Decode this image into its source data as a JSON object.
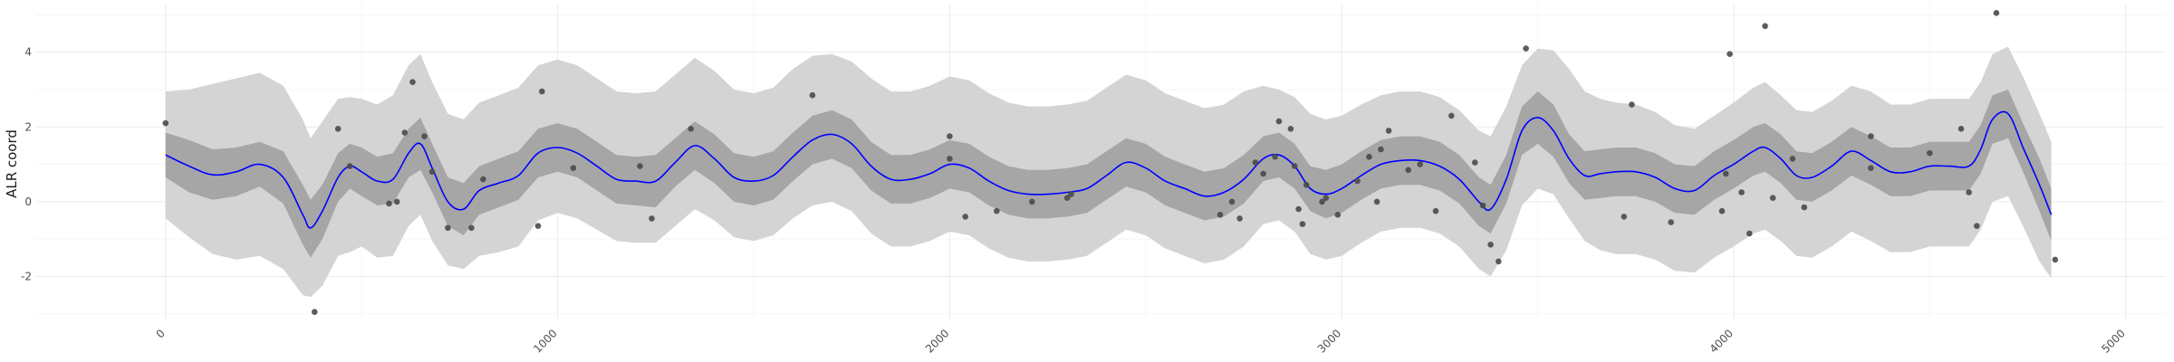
{
  "chart_data": {
    "type": "line",
    "title": "",
    "xlabel": "",
    "ylabel": "ALR coord",
    "xlim": [
      -330,
      5100
    ],
    "ylim": [
      -3.2,
      5.3
    ],
    "xticks": [
      0,
      1000,
      2000,
      3000,
      4000,
      5000
    ],
    "yticks": [
      -2,
      0,
      2,
      4
    ],
    "xtick_labels": [
      "0",
      "1000",
      "2000",
      "3000",
      "4000",
      "5000"
    ],
    "ytick_labels": [
      "-2",
      "0",
      "2",
      "4"
    ],
    "grid": true,
    "colors": {
      "mean_line": "#0000ff",
      "inner_band": "#a6a6a6",
      "outer_band": "#d4d4d4",
      "points": "#4a4a4a"
    },
    "series": [
      {
        "type": "line",
        "x": [
          0,
          60,
          120,
          180,
          240,
          300,
          350,
          370,
          400,
          440,
          470,
          500,
          540,
          580,
          620,
          650,
          680,
          720,
          760,
          800,
          850,
          900,
          950,
          1000,
          1050,
          1100,
          1150,
          1200,
          1250,
          1300,
          1350,
          1400,
          1450,
          1500,
          1550,
          1600,
          1650,
          1700,
          1750,
          1800,
          1850,
          1900,
          1950,
          2000,
          2050,
          2100,
          2150,
          2200,
          2250,
          2300,
          2350,
          2400,
          2450,
          2500,
          2550,
          2600,
          2650,
          2700,
          2750,
          2800,
          2840,
          2880,
          2920,
          2960,
          3000,
          3050,
          3100,
          3150,
          3200,
          3250,
          3300,
          3350,
          3380,
          3420,
          3460,
          3500,
          3540,
          3580,
          3620,
          3660,
          3700,
          3750,
          3800,
          3850,
          3900,
          3950,
          4000,
          4050,
          4080,
          4120,
          4160,
          4200,
          4250,
          4300,
          4350,
          4400,
          4450,
          4500,
          4550,
          4600,
          4630,
          4660,
          4700,
          4740,
          4780,
          4810
        ],
        "y": [
          1.25,
          0.95,
          0.72,
          0.8,
          1.0,
          0.65,
          -0.35,
          -0.7,
          -0.25,
          0.65,
          0.95,
          0.8,
          0.55,
          0.6,
          1.3,
          1.55,
          0.9,
          0.0,
          -0.2,
          0.3,
          0.5,
          0.7,
          1.3,
          1.45,
          1.3,
          0.95,
          0.6,
          0.55,
          0.55,
          1.05,
          1.5,
          1.15,
          0.65,
          0.55,
          0.7,
          1.2,
          1.65,
          1.8,
          1.55,
          0.95,
          0.6,
          0.6,
          0.75,
          1.0,
          0.9,
          0.55,
          0.3,
          0.2,
          0.2,
          0.25,
          0.35,
          0.7,
          1.05,
          0.9,
          0.55,
          0.35,
          0.15,
          0.25,
          0.6,
          1.15,
          1.25,
          0.95,
          0.35,
          0.2,
          0.35,
          0.7,
          1.0,
          1.1,
          1.1,
          0.95,
          0.6,
          0.0,
          -0.2,
          0.6,
          1.9,
          2.25,
          1.9,
          1.15,
          0.7,
          0.75,
          0.8,
          0.8,
          0.65,
          0.35,
          0.3,
          0.7,
          1.0,
          1.35,
          1.45,
          1.15,
          0.7,
          0.65,
          0.95,
          1.35,
          1.1,
          0.8,
          0.8,
          0.95,
          0.95,
          0.95,
          1.4,
          2.2,
          2.35,
          1.4,
          0.45,
          -0.35
        ]
      },
      {
        "type": "scatter",
        "points": [
          [
            0,
            2.1
          ],
          [
            380,
            -2.95
          ],
          [
            440,
            1.95
          ],
          [
            470,
            0.95
          ],
          [
            570,
            -0.05
          ],
          [
            590,
            0.0
          ],
          [
            610,
            1.85
          ],
          [
            630,
            3.2
          ],
          [
            660,
            1.75
          ],
          [
            680,
            0.8
          ],
          [
            720,
            -0.7
          ],
          [
            780,
            -0.7
          ],
          [
            810,
            0.6
          ],
          [
            950,
            -0.65
          ],
          [
            960,
            2.95
          ],
          [
            1040,
            0.9
          ],
          [
            1210,
            0.95
          ],
          [
            1240,
            -0.45
          ],
          [
            1340,
            1.95
          ],
          [
            1650,
            2.85
          ],
          [
            2000,
            1.75
          ],
          [
            2000,
            1.15
          ],
          [
            2040,
            -0.4
          ],
          [
            2120,
            -0.25
          ],
          [
            2210,
            0.0
          ],
          [
            2300,
            0.1
          ],
          [
            2310,
            0.2
          ],
          [
            2690,
            -0.35
          ],
          [
            2720,
            0.0
          ],
          [
            2740,
            -0.45
          ],
          [
            2780,
            1.05
          ],
          [
            2800,
            0.75
          ],
          [
            2830,
            1.2
          ],
          [
            2840,
            2.15
          ],
          [
            2870,
            1.95
          ],
          [
            2880,
            0.95
          ],
          [
            2890,
            -0.2
          ],
          [
            2900,
            -0.6
          ],
          [
            2910,
            0.45
          ],
          [
            2950,
            0.0
          ],
          [
            2960,
            0.1
          ],
          [
            2990,
            -0.35
          ],
          [
            3040,
            0.55
          ],
          [
            3070,
            1.2
          ],
          [
            3090,
            0.0
          ],
          [
            3100,
            1.4
          ],
          [
            3120,
            1.9
          ],
          [
            3170,
            0.85
          ],
          [
            3200,
            1.0
          ],
          [
            3240,
            -0.25
          ],
          [
            3280,
            2.3
          ],
          [
            3340,
            1.05
          ],
          [
            3360,
            -0.1
          ],
          [
            3380,
            -1.15
          ],
          [
            3400,
            -1.6
          ],
          [
            3470,
            4.1
          ],
          [
            3720,
            -0.4
          ],
          [
            3740,
            2.6
          ],
          [
            3840,
            -0.55
          ],
          [
            3970,
            -0.25
          ],
          [
            3980,
            0.75
          ],
          [
            3990,
            3.95
          ],
          [
            4020,
            0.25
          ],
          [
            4040,
            -0.85
          ],
          [
            4080,
            4.7
          ],
          [
            4100,
            0.1
          ],
          [
            4150,
            1.15
          ],
          [
            4180,
            -0.15
          ],
          [
            4350,
            1.75
          ],
          [
            4350,
            0.9
          ],
          [
            4500,
            1.3
          ],
          [
            4580,
            1.95
          ],
          [
            4600,
            0.25
          ],
          [
            4620,
            -0.65
          ],
          [
            4670,
            5.05
          ],
          [
            4820,
            -1.55
          ]
        ]
      }
    ],
    "bands": {
      "inner": {
        "upper": [
          1.85,
          1.65,
          1.4,
          1.45,
          1.6,
          1.35,
          0.45,
          0.05,
          0.45,
          1.3,
          1.55,
          1.45,
          1.2,
          1.3,
          1.95,
          2.25,
          1.55,
          0.65,
          0.5,
          0.95,
          1.15,
          1.35,
          1.95,
          2.1,
          1.95,
          1.6,
          1.25,
          1.2,
          1.25,
          1.7,
          2.15,
          1.8,
          1.3,
          1.2,
          1.35,
          1.85,
          2.3,
          2.45,
          2.2,
          1.6,
          1.25,
          1.25,
          1.4,
          1.65,
          1.55,
          1.2,
          0.95,
          0.85,
          0.85,
          0.9,
          1.0,
          1.35,
          1.7,
          1.55,
          1.2,
          1.0,
          0.8,
          0.9,
          1.25,
          1.75,
          1.85,
          1.55,
          0.95,
          0.85,
          1.0,
          1.35,
          1.65,
          1.75,
          1.75,
          1.6,
          1.25,
          0.65,
          0.45,
          1.25,
          2.55,
          2.95,
          2.6,
          1.8,
          1.35,
          1.4,
          1.45,
          1.45,
          1.3,
          1.0,
          0.95,
          1.35,
          1.65,
          2.0,
          2.1,
          1.8,
          1.35,
          1.3,
          1.6,
          2.0,
          1.75,
          1.45,
          1.45,
          1.6,
          1.6,
          1.6,
          2.05,
          2.85,
          3.0,
          2.05,
          1.15,
          0.35
        ],
        "lower": [
          0.65,
          0.25,
          0.05,
          0.15,
          0.4,
          -0.05,
          -1.15,
          -1.5,
          -1.0,
          0.0,
          0.35,
          0.15,
          -0.1,
          -0.05,
          0.65,
          0.85,
          0.25,
          -0.65,
          -0.9,
          -0.35,
          -0.15,
          0.05,
          0.65,
          0.8,
          0.65,
          0.3,
          -0.05,
          -0.1,
          -0.15,
          0.4,
          0.85,
          0.5,
          0.0,
          -0.1,
          0.05,
          0.55,
          1.0,
          1.15,
          0.9,
          0.3,
          -0.05,
          -0.05,
          0.1,
          0.35,
          0.25,
          -0.1,
          -0.35,
          -0.45,
          -0.45,
          -0.4,
          -0.3,
          0.05,
          0.4,
          0.25,
          -0.1,
          -0.3,
          -0.5,
          -0.4,
          -0.05,
          0.55,
          0.65,
          0.35,
          -0.25,
          -0.45,
          -0.3,
          0.05,
          0.35,
          0.45,
          0.45,
          0.3,
          -0.05,
          -0.65,
          -0.85,
          -0.05,
          1.25,
          1.55,
          1.2,
          0.5,
          0.05,
          0.1,
          0.15,
          0.15,
          0.0,
          -0.3,
          -0.35,
          0.05,
          0.35,
          0.7,
          0.8,
          0.5,
          0.05,
          0.0,
          0.3,
          0.7,
          0.45,
          0.15,
          0.15,
          0.3,
          0.3,
          0.3,
          0.75,
          1.55,
          1.7,
          0.75,
          -0.25,
          -1.05
        ]
      },
      "outer": {
        "upper": [
          2.95,
          3.0,
          3.15,
          3.3,
          3.45,
          3.1,
          2.2,
          1.7,
          2.15,
          2.75,
          2.8,
          2.75,
          2.6,
          2.85,
          3.65,
          3.95,
          3.2,
          2.35,
          2.2,
          2.65,
          2.85,
          3.05,
          3.65,
          3.8,
          3.65,
          3.3,
          2.95,
          2.9,
          2.95,
          3.4,
          3.85,
          3.5,
          3.0,
          2.9,
          3.05,
          3.55,
          3.9,
          3.95,
          3.75,
          3.3,
          2.95,
          2.95,
          3.1,
          3.35,
          3.25,
          2.9,
          2.65,
          2.55,
          2.55,
          2.6,
          2.7,
          3.05,
          3.4,
          3.25,
          2.9,
          2.7,
          2.5,
          2.6,
          2.95,
          3.1,
          3.0,
          2.8,
          2.35,
          2.2,
          2.3,
          2.6,
          2.85,
          2.95,
          2.95,
          2.8,
          2.45,
          1.9,
          1.75,
          2.55,
          3.65,
          4.1,
          4.05,
          3.55,
          2.95,
          2.75,
          2.65,
          2.6,
          2.4,
          2.05,
          1.95,
          2.3,
          2.65,
          3.05,
          3.2,
          2.85,
          2.45,
          2.4,
          2.7,
          3.1,
          2.95,
          2.6,
          2.6,
          2.75,
          2.75,
          2.75,
          3.2,
          3.95,
          4.15,
          3.3,
          2.35,
          1.6
        ],
        "lower": [
          -0.45,
          -0.95,
          -1.4,
          -1.55,
          -1.45,
          -1.8,
          -2.5,
          -2.55,
          -2.25,
          -1.45,
          -1.35,
          -1.2,
          -1.5,
          -1.45,
          -0.65,
          -0.35,
          -1.05,
          -1.7,
          -1.8,
          -1.45,
          -1.35,
          -1.2,
          -0.5,
          -0.3,
          -0.45,
          -0.75,
          -1.05,
          -1.1,
          -1.1,
          -0.65,
          -0.2,
          -0.5,
          -0.95,
          -1.05,
          -0.9,
          -0.45,
          -0.1,
          0.0,
          -0.25,
          -0.85,
          -1.2,
          -1.2,
          -1.05,
          -0.8,
          -0.9,
          -1.25,
          -1.5,
          -1.6,
          -1.6,
          -1.55,
          -1.45,
          -1.1,
          -0.75,
          -0.9,
          -1.25,
          -1.45,
          -1.65,
          -1.55,
          -1.2,
          -0.6,
          -0.5,
          -0.8,
          -1.4,
          -1.55,
          -1.45,
          -1.1,
          -0.8,
          -0.7,
          -0.7,
          -0.85,
          -1.2,
          -1.8,
          -2.0,
          -1.3,
          -0.1,
          0.35,
          0.2,
          -0.45,
          -1.05,
          -1.3,
          -1.4,
          -1.4,
          -1.55,
          -1.85,
          -1.9,
          -1.5,
          -1.2,
          -0.85,
          -0.75,
          -1.05,
          -1.45,
          -1.5,
          -1.2,
          -0.8,
          -1.05,
          -1.35,
          -1.35,
          -1.2,
          -1.2,
          -1.2,
          -0.75,
          0.0,
          0.15,
          -0.7,
          -1.6,
          -2.05
        ]
      }
    }
  }
}
